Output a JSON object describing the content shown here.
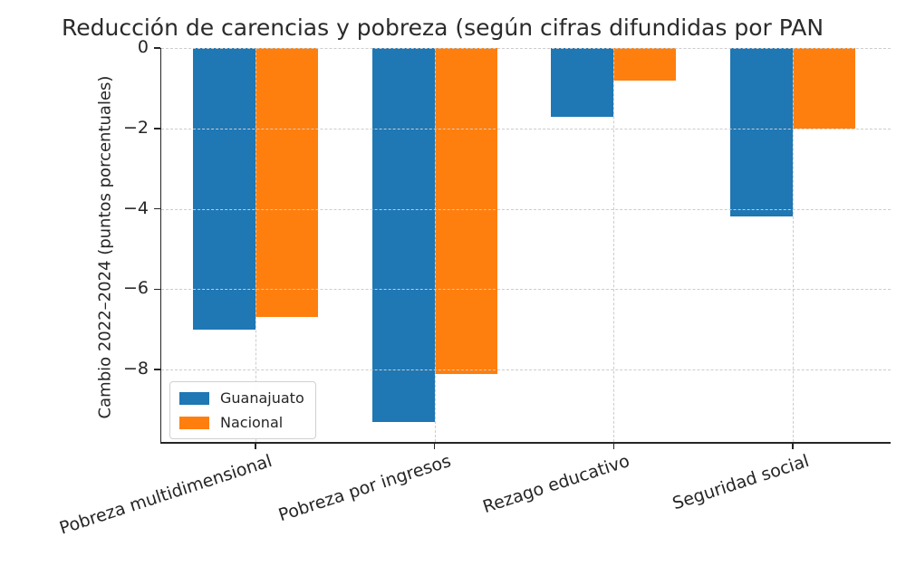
{
  "chart_data": {
    "type": "bar",
    "title": "Reducción de carencias y pobreza (según cifras difundidas por PAN",
    "ylabel": "Cambio 2022–2024 (puntos porcentuales)",
    "categories": [
      "Pobreza multidimensional",
      "Pobreza por ingresos",
      "Rezago educativo",
      "Seguridad social"
    ],
    "series": [
      {
        "name": "Guanajuato",
        "color": "#1f77b4",
        "values": [
          -7.0,
          -9.3,
          -1.7,
          -4.2
        ]
      },
      {
        "name": "Nacional",
        "color": "#ff7f0e",
        "values": [
          -6.7,
          -8.1,
          -0.8,
          -2.0
        ]
      }
    ],
    "ylim": [
      -9.8,
      0
    ],
    "yticks": [
      0,
      -2,
      -4,
      -6,
      -8
    ],
    "grid": true,
    "gridline_style": "dashed",
    "legend_position": "lower left",
    "colors": {
      "spine": "#262626",
      "grid": "#cccccc",
      "text": "#262626",
      "background": "#ffffff"
    }
  }
}
